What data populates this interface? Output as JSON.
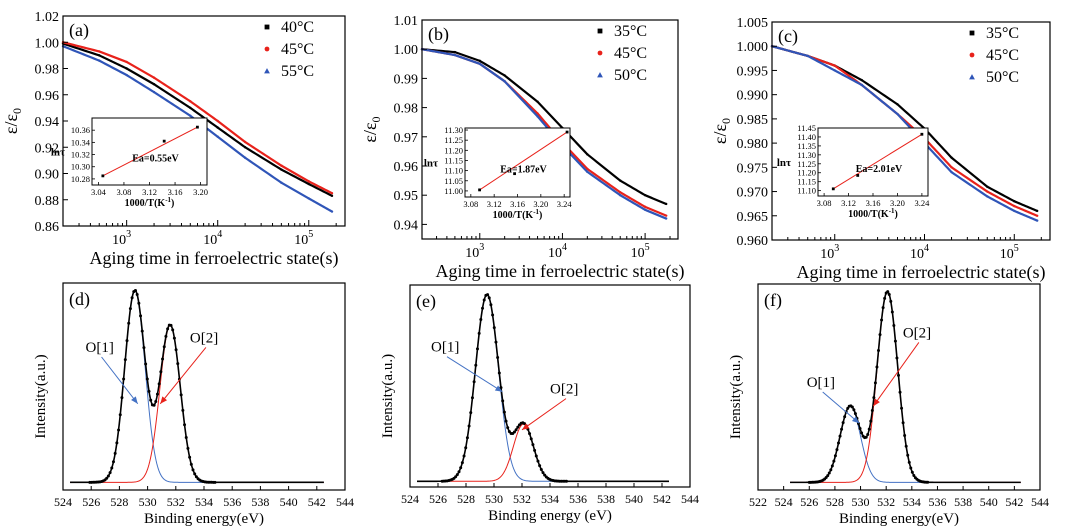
{
  "chart_data": [
    {
      "id": "a",
      "type": "scatter",
      "panel_label": "(a)",
      "xlabel": "Aging time in ferroelectric state(s)",
      "ylabel": "ε/ε",
      "ylabel_sub": "0",
      "xscale": "log",
      "xlim": [
        200,
        250000
      ],
      "ylim": [
        0.86,
        1.02
      ],
      "xtick_values": [
        1000,
        10000,
        100000
      ],
      "xtick_labels": [
        "10",
        "10",
        "10"
      ],
      "xtick_exps": [
        "3",
        "4",
        "5"
      ],
      "ytick_values": [
        0.86,
        0.88,
        0.9,
        0.92,
        0.94,
        0.96,
        0.98,
        1.0,
        1.02
      ],
      "ytick_labels": [
        "0.86",
        "0.88",
        "0.90",
        "0.92",
        "0.94",
        "0.96",
        "0.98",
        "1.00",
        "1.02"
      ],
      "legend_position": "top-right",
      "series": [
        {
          "name": "40°C",
          "color": "#000000",
          "marker": "square",
          "x": [
            200,
            500,
            1000,
            2000,
            5000,
            10000,
            20000,
            50000,
            100000,
            180000
          ],
          "y": [
            0.999,
            0.99,
            0.98,
            0.968,
            0.95,
            0.935,
            0.92,
            0.903,
            0.892,
            0.883
          ]
        },
        {
          "name": "45°C",
          "color": "#e8221b",
          "marker": "circle",
          "x": [
            200,
            500,
            1000,
            2000,
            5000,
            10000,
            20000,
            50000,
            100000,
            180000
          ],
          "y": [
            1.0,
            0.993,
            0.985,
            0.973,
            0.955,
            0.94,
            0.924,
            0.906,
            0.894,
            0.885
          ]
        },
        {
          "name": "55°C",
          "color": "#2f55b8",
          "marker": "triangle",
          "x": [
            200,
            500,
            1000,
            2000,
            5000,
            10000,
            20000,
            50000,
            100000,
            180000
          ],
          "y": [
            0.997,
            0.986,
            0.975,
            0.962,
            0.944,
            0.928,
            0.912,
            0.893,
            0.881,
            0.871
          ]
        }
      ],
      "inset": {
        "xlabel": "1000/T(K",
        "xlabel_sup": "-1",
        "xlabel_end": ")",
        "ylabel": "lnτ",
        "xlim": [
          3.03,
          3.21
        ],
        "ylim": [
          10.27,
          10.38
        ],
        "xtick_values": [
          3.04,
          3.08,
          3.12,
          3.16,
          3.2
        ],
        "xtick_labels": [
          "3.04",
          "3.08",
          "3.12",
          "3.16",
          "3.20"
        ],
        "ytick_values": [
          10.28,
          10.3,
          10.32,
          10.34,
          10.36
        ],
        "ytick_labels": [
          "10.28",
          "10.30",
          "10.32",
          "10.34",
          "10.36"
        ],
        "points_x": [
          3.047,
          3.143,
          3.195
        ],
        "points_y": [
          10.285,
          10.342,
          10.365
        ],
        "annotation": "Ea=0.55eV"
      }
    },
    {
      "id": "b",
      "type": "scatter",
      "panel_label": "(b)",
      "xlabel": "Aging time in ferroelectric state(s)",
      "ylabel": "ε/ε",
      "ylabel_sub": "0",
      "xscale": "log",
      "xlim": [
        200,
        250000
      ],
      "ylim": [
        0.935,
        1.01
      ],
      "xtick_values": [
        1000,
        10000,
        100000
      ],
      "xtick_labels": [
        "10",
        "10",
        "10"
      ],
      "xtick_exps": [
        "3",
        "4",
        "5"
      ],
      "ytick_values": [
        0.94,
        0.95,
        0.96,
        0.97,
        0.98,
        0.99,
        1.0,
        1.01
      ],
      "ytick_labels": [
        "0.94",
        "0.95",
        "0.96",
        "0.97",
        "0.98",
        "0.99",
        "1.00",
        "1.01"
      ],
      "legend_position": "top-right",
      "series": [
        {
          "name": "35°C",
          "color": "#000000",
          "marker": "square",
          "x": [
            200,
            500,
            1000,
            2000,
            5000,
            10000,
            20000,
            50000,
            100000,
            180000
          ],
          "y": [
            1.0,
            0.999,
            0.996,
            0.991,
            0.982,
            0.973,
            0.964,
            0.955,
            0.95,
            0.947
          ]
        },
        {
          "name": "45°C",
          "color": "#e8221b",
          "marker": "circle",
          "x": [
            200,
            500,
            1000,
            2000,
            5000,
            10000,
            20000,
            50000,
            100000,
            180000
          ],
          "y": [
            1.0,
            0.998,
            0.995,
            0.989,
            0.978,
            0.968,
            0.959,
            0.951,
            0.946,
            0.943
          ]
        },
        {
          "name": "50°C",
          "color": "#2f55b8",
          "marker": "triangle",
          "x": [
            200,
            500,
            1000,
            2000,
            5000,
            10000,
            20000,
            50000,
            100000,
            180000
          ],
          "y": [
            1.0,
            0.998,
            0.995,
            0.989,
            0.977,
            0.967,
            0.958,
            0.95,
            0.945,
            0.942
          ]
        }
      ],
      "inset": {
        "xlabel": "1000/T(K",
        "xlabel_sup": "-1",
        "xlabel_end": ")",
        "ylabel": "lnτ",
        "xlim": [
          3.07,
          3.25
        ],
        "ylim": [
          10.97,
          11.31
        ],
        "xtick_values": [
          3.08,
          3.12,
          3.16,
          3.2,
          3.24
        ],
        "xtick_labels": [
          "3.08",
          "3.12",
          "3.16",
          "3.20",
          "3.24"
        ],
        "ytick_values": [
          11.0,
          11.05,
          11.1,
          11.15,
          11.2,
          11.25,
          11.3
        ],
        "ytick_labels": [
          "11.00",
          "11.05",
          "11.10",
          "11.15",
          "11.20",
          "11.25",
          "11.30"
        ],
        "points_x": [
          3.095,
          3.155,
          3.245
        ],
        "points_y": [
          11.005,
          11.085,
          11.29
        ],
        "annotation": "Ea=1.87eV"
      }
    },
    {
      "id": "c",
      "type": "scatter",
      "panel_label": "(c)",
      "xlabel": "Aging time in ferroelectric state(s)",
      "ylabel": "ε/ε",
      "ylabel_sub": "0",
      "xscale": "log",
      "xlim": [
        200,
        250000
      ],
      "ylim": [
        0.96,
        1.005
      ],
      "xtick_values": [
        1000,
        10000,
        100000
      ],
      "xtick_labels": [
        "10",
        "10",
        "10"
      ],
      "xtick_exps": [
        "3",
        "4",
        "5"
      ],
      "ytick_values": [
        0.96,
        0.965,
        0.97,
        0.975,
        0.98,
        0.985,
        0.99,
        0.995,
        1.0,
        1.005
      ],
      "ytick_labels": [
        "0.960",
        "0.965",
        "0.970",
        "0.975",
        "0.980",
        "0.985",
        "0.990",
        "0.995",
        "1.000",
        "1.005"
      ],
      "legend_position": "top-right",
      "series": [
        {
          "name": "35°C",
          "color": "#000000",
          "marker": "square",
          "x": [
            200,
            500,
            1000,
            2000,
            5000,
            10000,
            20000,
            50000,
            100000,
            180000
          ],
          "y": [
            1.0,
            0.998,
            0.996,
            0.993,
            0.988,
            0.983,
            0.977,
            0.971,
            0.968,
            0.966
          ]
        },
        {
          "name": "45°C",
          "color": "#e8221b",
          "marker": "circle",
          "x": [
            200,
            500,
            1000,
            2000,
            5000,
            10000,
            20000,
            50000,
            100000,
            180000
          ],
          "y": [
            1.0,
            0.998,
            0.996,
            0.992,
            0.986,
            0.981,
            0.975,
            0.97,
            0.967,
            0.965
          ]
        },
        {
          "name": "50°C",
          "color": "#2f55b8",
          "marker": "triangle",
          "x": [
            200,
            500,
            1000,
            2000,
            5000,
            10000,
            20000,
            50000,
            100000,
            180000
          ],
          "y": [
            1.0,
            0.998,
            0.995,
            0.992,
            0.986,
            0.98,
            0.974,
            0.969,
            0.966,
            0.964
          ]
        }
      ],
      "inset": {
        "xlabel": "1000/T(K",
        "xlabel_sup": "-1",
        "xlabel_end": ")",
        "ylabel": "lnτ",
        "xlim": [
          3.07,
          3.25
        ],
        "ylim": [
          11.07,
          11.45
        ],
        "xtick_values": [
          3.08,
          3.12,
          3.16,
          3.2,
          3.24
        ],
        "xtick_labels": [
          "3.08",
          "3.12",
          "3.16",
          "3.20",
          "3.24"
        ],
        "ytick_values": [
          11.1,
          11.15,
          11.2,
          11.25,
          11.3,
          11.35,
          11.4,
          11.45
        ],
        "ytick_labels": [
          "11.10",
          "11.15",
          "11.20",
          "11.25",
          "11.30",
          "11.35",
          "11.40",
          "11.45"
        ],
        "points_x": [
          3.095,
          3.135,
          3.24
        ],
        "points_y": [
          11.11,
          11.185,
          11.415
        ],
        "annotation": "Ea=2.01eV"
      }
    },
    {
      "id": "d",
      "type": "line",
      "panel_label": "(d)",
      "xlabel": "Binding energy(eV)",
      "ylabel": "Intensity(a.u.)",
      "xlim": [
        524,
        544
      ],
      "ylim": [
        0,
        1.08
      ],
      "xtick_values": [
        524,
        526,
        528,
        530,
        532,
        534,
        536,
        538,
        540,
        542,
        544
      ],
      "xtick_labels": [
        "524",
        "526",
        "528",
        "530",
        "532",
        "534",
        "536",
        "538",
        "540",
        "542",
        "544"
      ],
      "data_xrange": [
        524.5,
        542.5
      ],
      "baseline": 0.04,
      "peaks": [
        {
          "name": "O[1]",
          "center": 529.1,
          "sigma": 0.72,
          "height": 1.0,
          "color": "#4472c4"
        },
        {
          "name": "O[2]",
          "center": 531.6,
          "sigma": 0.72,
          "height": 0.82,
          "color": "#e8221b"
        }
      ],
      "annotations": [
        {
          "text": "O[1]",
          "text_x": 525.6,
          "text_y": 0.72,
          "tip_x": 529.3,
          "tip_y": 0.45,
          "color": "#4472c4"
        },
        {
          "text": "O[2]",
          "text_x": 533.0,
          "text_y": 0.77,
          "tip_x": 530.9,
          "tip_y": 0.45,
          "color": "#e8221b"
        }
      ]
    },
    {
      "id": "e",
      "type": "line",
      "panel_label": "(e)",
      "xlabel": "Binding energy (eV)",
      "ylabel": "Intensity(a.u.)",
      "xlim": [
        524,
        544
      ],
      "ylim": [
        0,
        1.06
      ],
      "xtick_values": [
        524,
        526,
        528,
        530,
        532,
        534,
        536,
        538,
        540,
        542,
        544
      ],
      "xtick_labels": [
        "524",
        "526",
        "528",
        "530",
        "532",
        "534",
        "536",
        "538",
        "540",
        "542",
        "544"
      ],
      "data_xrange": [
        524.5,
        542.5
      ],
      "baseline": 0.03,
      "peaks": [
        {
          "name": "O[1]",
          "center": 529.5,
          "sigma": 0.82,
          "height": 0.98,
          "color": "#4472c4"
        },
        {
          "name": "O[2]",
          "center": 532.1,
          "sigma": 0.72,
          "height": 0.3,
          "color": "#e8221b"
        }
      ],
      "annotations": [
        {
          "text": "O[1]",
          "text_x": 525.5,
          "text_y": 0.71,
          "tip_x": 530.6,
          "tip_y": 0.5,
          "color": "#4472c4"
        },
        {
          "text": "O[2]",
          "text_x": 534.0,
          "text_y": 0.49,
          "tip_x": 532.0,
          "tip_y": 0.3,
          "color": "#e8221b"
        }
      ]
    },
    {
      "id": "f",
      "type": "line",
      "panel_label": "(f)",
      "xlabel": "Binding energy(eV)",
      "ylabel": "Intensity(a.u.)",
      "xlim": [
        522,
        544
      ],
      "ylim": [
        0,
        1.08
      ],
      "xtick_values": [
        522,
        524,
        526,
        528,
        530,
        532,
        534,
        536,
        538,
        540,
        542,
        544
      ],
      "xtick_labels": [
        "522",
        "524",
        "526",
        "528",
        "530",
        "532",
        "534",
        "536",
        "538",
        "540",
        "542",
        "544"
      ],
      "data_xrange": [
        524.5,
        542.5
      ],
      "baseline": 0.04,
      "peaks": [
        {
          "name": "O[1]",
          "center": 529.2,
          "sigma": 0.8,
          "height": 0.4,
          "color": "#4472c4"
        },
        {
          "name": "O[2]",
          "center": 532.1,
          "sigma": 0.8,
          "height": 1.0,
          "color": "#e8221b"
        }
      ],
      "annotations": [
        {
          "text": "O[1]",
          "text_x": 525.8,
          "text_y": 0.54,
          "tip_x": 529.9,
          "tip_y": 0.35,
          "color": "#4472c4"
        },
        {
          "text": "O[2]",
          "text_x": 533.3,
          "text_y": 0.8,
          "tip_x": 531.0,
          "tip_y": 0.44,
          "color": "#e8221b"
        }
      ]
    }
  ]
}
